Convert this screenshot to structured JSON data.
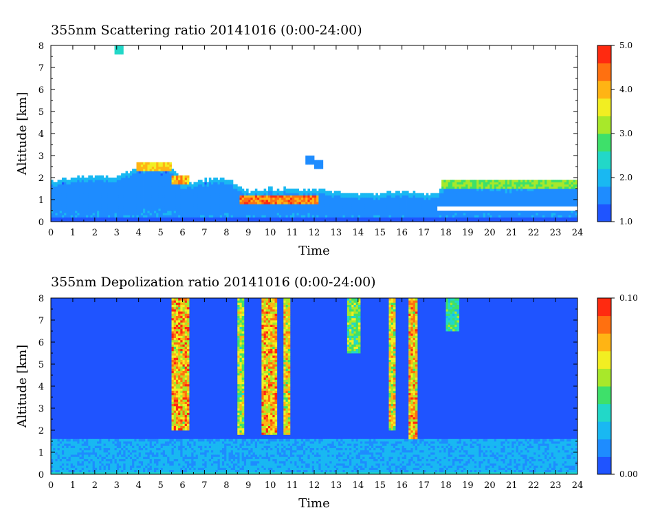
{
  "chart_data": [
    {
      "type": "heatmap",
      "title": "355nm Scattering ratio  20141016 (0:00-24:00)",
      "xlabel": "Time",
      "ylabel": "Altitude [km]",
      "x_ticks": [
        "0",
        "1",
        "2",
        "3",
        "4",
        "5",
        "6",
        "7",
        "8",
        "9",
        "10",
        "11",
        "12",
        "13",
        "14",
        "15",
        "16",
        "17",
        "18",
        "19",
        "20",
        "21",
        "22",
        "23",
        "24"
      ],
      "y_ticks": [
        "0",
        "1",
        "2",
        "3",
        "4",
        "5",
        "6",
        "7",
        "8"
      ],
      "xlim": [
        0,
        24
      ],
      "ylim": [
        0,
        8
      ],
      "colorbar": {
        "range": [
          1.0,
          5.0
        ],
        "ticks": [
          "1.0",
          "2.0",
          "3.0",
          "4.0",
          "5.0"
        ]
      },
      "colormap": [
        "#1f54ff",
        "#1e8cff",
        "#19b8f2",
        "#22d8c8",
        "#3ee06a",
        "#a8e82a",
        "#f2ee22",
        "#ffb414",
        "#ff7010",
        "#ff2a10"
      ],
      "layer_top_km": [
        [
          0,
          1.85
        ],
        [
          1,
          2.0
        ],
        [
          2,
          2.1
        ],
        [
          3,
          2.0
        ],
        [
          3.9,
          2.5
        ],
        [
          5.5,
          2.5
        ],
        [
          6,
          1.7
        ],
        [
          7,
          1.9
        ],
        [
          8,
          2.0
        ],
        [
          8.6,
          1.6
        ],
        [
          9,
          1.4
        ],
        [
          10,
          1.5
        ],
        [
          11,
          1.5
        ],
        [
          12,
          1.45
        ],
        [
          13,
          1.35
        ],
        [
          14,
          1.3
        ],
        [
          15,
          1.3
        ],
        [
          16,
          1.4
        ],
        [
          17,
          1.25
        ],
        [
          17.6,
          1.3
        ],
        [
          18,
          1.7
        ],
        [
          19,
          1.75
        ],
        [
          20,
          1.6
        ],
        [
          21,
          1.6
        ],
        [
          22,
          1.7
        ],
        [
          23,
          1.75
        ],
        [
          24,
          1.85
        ]
      ],
      "intense_layers": [
        {
          "t_start": 8.6,
          "t_end": 12.2,
          "alt_km": 1.0,
          "scattering_ratio": 4.5
        },
        {
          "t_start": 3.9,
          "t_end": 5.5,
          "alt_km": 2.5,
          "scattering_ratio": 4.0
        },
        {
          "t_start": 5.5,
          "t_end": 6.3,
          "alt_km": 1.9,
          "scattering_ratio": 4.2
        },
        {
          "t_start": 17.8,
          "t_end": 24,
          "alt_km": 1.7,
          "scattering_ratio": 3.2
        }
      ],
      "isolated_clouds": [
        {
          "t": 3.1,
          "alt_km": 7.8,
          "scattering_ratio": 2.5
        },
        {
          "t": 11.8,
          "alt_km": 2.8,
          "scattering_ratio": 1.6
        },
        {
          "t": 12.2,
          "alt_km": 2.6,
          "scattering_ratio": 1.5
        }
      ]
    },
    {
      "type": "heatmap",
      "title": "355nm Depolization ratio  20141016 (0:00-24:00)",
      "xlabel": "Time",
      "ylabel": "Altitude [km]",
      "x_ticks": [
        "0",
        "1",
        "2",
        "3",
        "4",
        "5",
        "6",
        "7",
        "8",
        "9",
        "10",
        "11",
        "12",
        "13",
        "14",
        "15",
        "16",
        "17",
        "18",
        "19",
        "20",
        "21",
        "22",
        "23",
        "24"
      ],
      "y_ticks": [
        "0",
        "1",
        "2",
        "3",
        "4",
        "5",
        "6",
        "7",
        "8"
      ],
      "xlim": [
        0,
        24
      ],
      "ylim": [
        0,
        8
      ],
      "colorbar": {
        "range": [
          0.0,
          0.1
        ],
        "ticks": [
          "0.00",
          "0.10"
        ]
      },
      "colormap": [
        "#1f54ff",
        "#1e8cff",
        "#19b8f2",
        "#22d8c8",
        "#3ee06a",
        "#a8e82a",
        "#f2ee22",
        "#ffb414",
        "#ff7010",
        "#ff2a10"
      ],
      "background_depolarization": 0.01,
      "boundary_layer_top_km": 1.6,
      "high_depolarization_columns": [
        {
          "t_start": 5.5,
          "t_end": 6.3,
          "alt_min_km": 2.0,
          "alt_max_km": 8,
          "depolarization": 0.09
        },
        {
          "t_start": 8.5,
          "t_end": 8.8,
          "alt_min_km": 1.8,
          "alt_max_km": 8,
          "depolarization": 0.07
        },
        {
          "t_start": 9.6,
          "t_end": 10.3,
          "alt_min_km": 1.8,
          "alt_max_km": 8,
          "depolarization": 0.09
        },
        {
          "t_start": 10.6,
          "t_end": 10.9,
          "alt_min_km": 1.8,
          "alt_max_km": 8,
          "depolarization": 0.08
        },
        {
          "t_start": 13.5,
          "t_end": 14.1,
          "alt_min_km": 5.5,
          "alt_max_km": 8,
          "depolarization": 0.06
        },
        {
          "t_start": 15.4,
          "t_end": 15.7,
          "alt_min_km": 2.0,
          "alt_max_km": 8,
          "depolarization": 0.08
        },
        {
          "t_start": 16.3,
          "t_end": 16.7,
          "alt_min_km": 1.6,
          "alt_max_km": 8,
          "depolarization": 0.09
        },
        {
          "t_start": 18.0,
          "t_end": 18.6,
          "alt_min_km": 6.5,
          "alt_max_km": 8,
          "depolarization": 0.05
        }
      ]
    }
  ]
}
